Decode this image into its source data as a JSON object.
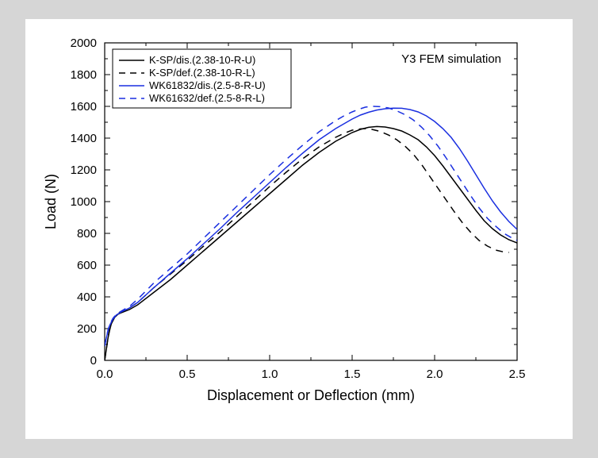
{
  "chart": {
    "type": "line",
    "title": "Y3 FEM simulation",
    "xlabel": "Displacement or Deflection (mm)",
    "ylabel": "Load (N)",
    "xlim": [
      0.0,
      2.5
    ],
    "ylim": [
      0,
      2000
    ],
    "xtick_step": 0.5,
    "ytick_step": 200,
    "xticks": [
      "0.0",
      "0.5",
      "1.0",
      "1.5",
      "2.0",
      "2.5"
    ],
    "yticks": [
      "0",
      "200",
      "400",
      "600",
      "800",
      "1000",
      "1200",
      "1400",
      "1600",
      "1800",
      "2000"
    ],
    "background_color": "#ffffff",
    "page_background": "#d6d6d6",
    "axis_color": "#000000",
    "tick_fontsize": 15,
    "label_fontsize": 18,
    "legend": {
      "box_stroke": "#000000",
      "box_fill": "#ffffff",
      "items": [
        {
          "label": "K-SP/dis.(2.38-10-R-U)",
          "color": "#000000",
          "dash": "solid"
        },
        {
          "label": "K-SP/def.(2.38-10-R-L)",
          "color": "#000000",
          "dash": "dash"
        },
        {
          "label": "WK61832/dis.(2.5-8-R-U)",
          "color": "#1a2fe0",
          "dash": "solid"
        },
        {
          "label": "WK61632/def.(2.5-8-R-L)",
          "color": "#1a2fe0",
          "dash": "dash"
        }
      ]
    },
    "series": [
      {
        "name": "K-SP/dis.(2.38-10-R-U)",
        "color": "#000000",
        "dash": "solid",
        "linewidth": 1.5,
        "points": [
          [
            0.0,
            0
          ],
          [
            0.01,
            70
          ],
          [
            0.02,
            140
          ],
          [
            0.03,
            190
          ],
          [
            0.04,
            230
          ],
          [
            0.06,
            270
          ],
          [
            0.08,
            290
          ],
          [
            0.1,
            300
          ],
          [
            0.15,
            320
          ],
          [
            0.2,
            350
          ],
          [
            0.3,
            430
          ],
          [
            0.4,
            510
          ],
          [
            0.5,
            600
          ],
          [
            0.6,
            690
          ],
          [
            0.7,
            780
          ],
          [
            0.8,
            870
          ],
          [
            0.9,
            960
          ],
          [
            1.0,
            1050
          ],
          [
            1.1,
            1140
          ],
          [
            1.2,
            1230
          ],
          [
            1.3,
            1310
          ],
          [
            1.4,
            1380
          ],
          [
            1.5,
            1435
          ],
          [
            1.55,
            1455
          ],
          [
            1.6,
            1468
          ],
          [
            1.65,
            1473
          ],
          [
            1.7,
            1470
          ],
          [
            1.75,
            1460
          ],
          [
            1.8,
            1445
          ],
          [
            1.85,
            1420
          ],
          [
            1.9,
            1390
          ],
          [
            1.95,
            1345
          ],
          [
            2.0,
            1290
          ],
          [
            2.05,
            1225
          ],
          [
            2.1,
            1155
          ],
          [
            2.15,
            1085
          ],
          [
            2.2,
            1015
          ],
          [
            2.25,
            945
          ],
          [
            2.3,
            880
          ],
          [
            2.35,
            830
          ],
          [
            2.4,
            790
          ],
          [
            2.45,
            760
          ],
          [
            2.5,
            740
          ]
        ]
      },
      {
        "name": "K-SP/def.(2.38-10-R-L)",
        "color": "#000000",
        "dash": "dash",
        "linewidth": 1.5,
        "points": [
          [
            0.0,
            0
          ],
          [
            0.01,
            70
          ],
          [
            0.02,
            145
          ],
          [
            0.03,
            195
          ],
          [
            0.04,
            235
          ],
          [
            0.06,
            275
          ],
          [
            0.08,
            295
          ],
          [
            0.1,
            308
          ],
          [
            0.15,
            330
          ],
          [
            0.2,
            365
          ],
          [
            0.3,
            460
          ],
          [
            0.4,
            545
          ],
          [
            0.5,
            630
          ],
          [
            0.6,
            720
          ],
          [
            0.7,
            810
          ],
          [
            0.8,
            905
          ],
          [
            0.9,
            1000
          ],
          [
            1.0,
            1095
          ],
          [
            1.1,
            1185
          ],
          [
            1.2,
            1270
          ],
          [
            1.3,
            1345
          ],
          [
            1.4,
            1405
          ],
          [
            1.45,
            1430
          ],
          [
            1.5,
            1450
          ],
          [
            1.55,
            1458
          ],
          [
            1.58,
            1460
          ],
          [
            1.62,
            1455
          ],
          [
            1.67,
            1442
          ],
          [
            1.72,
            1420
          ],
          [
            1.77,
            1390
          ],
          [
            1.82,
            1350
          ],
          [
            1.87,
            1300
          ],
          [
            1.92,
            1235
          ],
          [
            1.97,
            1160
          ],
          [
            2.02,
            1085
          ],
          [
            2.07,
            1010
          ],
          [
            2.12,
            935
          ],
          [
            2.17,
            865
          ],
          [
            2.22,
            805
          ],
          [
            2.27,
            755
          ],
          [
            2.32,
            720
          ],
          [
            2.37,
            695
          ],
          [
            2.43,
            680
          ],
          [
            2.45,
            680
          ]
        ]
      },
      {
        "name": "WK61832/dis.(2.5-8-R-U)",
        "color": "#1a2fe0",
        "dash": "solid",
        "linewidth": 1.5,
        "points": [
          [
            0.0,
            90
          ],
          [
            0.01,
            140
          ],
          [
            0.02,
            185
          ],
          [
            0.03,
            220
          ],
          [
            0.05,
            260
          ],
          [
            0.07,
            285
          ],
          [
            0.1,
            305
          ],
          [
            0.15,
            330
          ],
          [
            0.2,
            365
          ],
          [
            0.3,
            460
          ],
          [
            0.4,
            550
          ],
          [
            0.5,
            640
          ],
          [
            0.6,
            735
          ],
          [
            0.7,
            830
          ],
          [
            0.8,
            930
          ],
          [
            0.9,
            1025
          ],
          [
            1.0,
            1120
          ],
          [
            1.1,
            1215
          ],
          [
            1.2,
            1305
          ],
          [
            1.3,
            1390
          ],
          [
            1.4,
            1460
          ],
          [
            1.5,
            1520
          ],
          [
            1.55,
            1545
          ],
          [
            1.6,
            1563
          ],
          [
            1.65,
            1577
          ],
          [
            1.7,
            1585
          ],
          [
            1.75,
            1589
          ],
          [
            1.8,
            1588
          ],
          [
            1.85,
            1580
          ],
          [
            1.9,
            1565
          ],
          [
            1.95,
            1540
          ],
          [
            2.0,
            1505
          ],
          [
            2.05,
            1460
          ],
          [
            2.1,
            1405
          ],
          [
            2.15,
            1335
          ],
          [
            2.2,
            1255
          ],
          [
            2.25,
            1170
          ],
          [
            2.3,
            1085
          ],
          [
            2.35,
            1005
          ],
          [
            2.4,
            935
          ],
          [
            2.45,
            875
          ],
          [
            2.5,
            825
          ]
        ]
      },
      {
        "name": "WK61632/def.(2.5-8-R-L)",
        "color": "#1a2fe0",
        "dash": "dash",
        "linewidth": 1.5,
        "points": [
          [
            0.0,
            90
          ],
          [
            0.01,
            145
          ],
          [
            0.02,
            190
          ],
          [
            0.03,
            225
          ],
          [
            0.05,
            265
          ],
          [
            0.07,
            290
          ],
          [
            0.1,
            310
          ],
          [
            0.15,
            340
          ],
          [
            0.2,
            385
          ],
          [
            0.3,
            490
          ],
          [
            0.4,
            580
          ],
          [
            0.5,
            670
          ],
          [
            0.6,
            770
          ],
          [
            0.7,
            870
          ],
          [
            0.8,
            970
          ],
          [
            0.9,
            1070
          ],
          [
            1.0,
            1170
          ],
          [
            1.1,
            1265
          ],
          [
            1.2,
            1355
          ],
          [
            1.3,
            1440
          ],
          [
            1.4,
            1510
          ],
          [
            1.45,
            1540
          ],
          [
            1.5,
            1565
          ],
          [
            1.55,
            1585
          ],
          [
            1.58,
            1595
          ],
          [
            1.6,
            1598
          ],
          [
            1.63,
            1600
          ],
          [
            1.67,
            1598
          ],
          [
            1.72,
            1590
          ],
          [
            1.77,
            1572
          ],
          [
            1.82,
            1548
          ],
          [
            1.87,
            1515
          ],
          [
            1.92,
            1470
          ],
          [
            1.97,
            1415
          ],
          [
            2.02,
            1350
          ],
          [
            2.07,
            1275
          ],
          [
            2.12,
            1195
          ],
          [
            2.17,
            1115
          ],
          [
            2.22,
            1035
          ],
          [
            2.27,
            960
          ],
          [
            2.32,
            895
          ],
          [
            2.37,
            845
          ],
          [
            2.42,
            800
          ],
          [
            2.47,
            770
          ],
          [
            2.5,
            755
          ]
        ]
      }
    ]
  }
}
